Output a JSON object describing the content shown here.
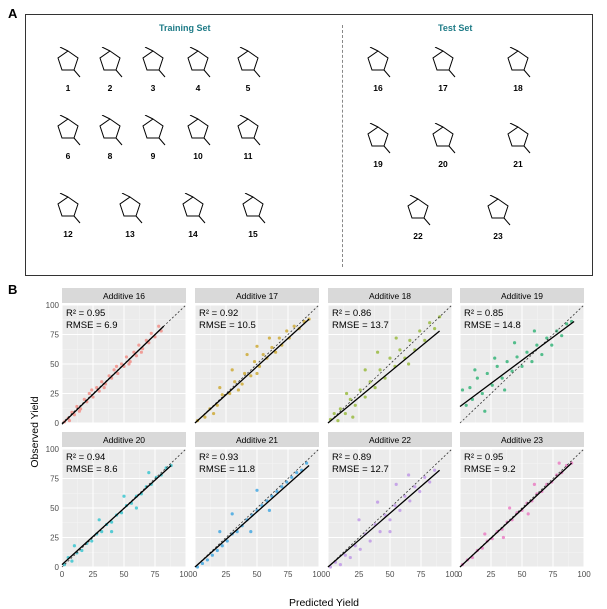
{
  "panel_a": {
    "letter": "A",
    "training_title": "Training Set",
    "test_title": "Test Set",
    "training_molecules": [
      "1",
      "2",
      "3",
      "4",
      "5",
      "6",
      "8",
      "9",
      "10",
      "11",
      "12",
      "13",
      "14",
      "15"
    ],
    "test_molecules": [
      "16",
      "17",
      "18",
      "19",
      "20",
      "21",
      "22",
      "23"
    ]
  },
  "panel_b": {
    "letter": "B"
  },
  "chart_data": {
    "type": "scatter",
    "xlabel": "Predicted Yield",
    "ylabel": "Observed Yield",
    "xlim": [
      0,
      100
    ],
    "ylim": [
      0,
      100
    ],
    "x_ticks": [
      0,
      25,
      50,
      75,
      100
    ],
    "y_ticks": [
      0,
      25,
      50,
      75,
      100
    ],
    "grid": true,
    "reference_line": "y = x (dashed)",
    "facets": [
      {
        "title": "Additive 16",
        "r2_label": "R² = 0.95",
        "rmse_label": "RMSE = 6.9",
        "color": "#f2837b",
        "points": [
          [
            2,
            1
          ],
          [
            5,
            4
          ],
          [
            8,
            9
          ],
          [
            10,
            7
          ],
          [
            12,
            14
          ],
          [
            15,
            12
          ],
          [
            18,
            20
          ],
          [
            20,
            18
          ],
          [
            22,
            25
          ],
          [
            25,
            22
          ],
          [
            28,
            30
          ],
          [
            30,
            27
          ],
          [
            32,
            35
          ],
          [
            35,
            33
          ],
          [
            38,
            40
          ],
          [
            40,
            38
          ],
          [
            42,
            45
          ],
          [
            45,
            42
          ],
          [
            48,
            50
          ],
          [
            50,
            48
          ],
          [
            52,
            56
          ],
          [
            55,
            52
          ],
          [
            58,
            60
          ],
          [
            60,
            57
          ],
          [
            62,
            66
          ],
          [
            65,
            63
          ],
          [
            68,
            70
          ],
          [
            70,
            68
          ],
          [
            72,
            76
          ],
          [
            75,
            73
          ],
          [
            78,
            82
          ],
          [
            80,
            78
          ],
          [
            6,
            2
          ],
          [
            14,
            10
          ],
          [
            24,
            28
          ],
          [
            34,
            30
          ],
          [
            44,
            48
          ],
          [
            54,
            50
          ],
          [
            64,
            60
          ]
        ],
        "fit": [
          [
            0,
            -1
          ],
          [
            82,
            82
          ]
        ]
      },
      {
        "title": "Additive 17",
        "r2_label": "R² = 0.92",
        "rmse_label": "RMSE = 10.5",
        "color": "#c9a21f",
        "points": [
          [
            2,
            2
          ],
          [
            8,
            5
          ],
          [
            12,
            12
          ],
          [
            18,
            15
          ],
          [
            22,
            24
          ],
          [
            28,
            25
          ],
          [
            32,
            35
          ],
          [
            38,
            33
          ],
          [
            40,
            42
          ],
          [
            45,
            40
          ],
          [
            48,
            52
          ],
          [
            52,
            48
          ],
          [
            55,
            58
          ],
          [
            58,
            55
          ],
          [
            62,
            64
          ],
          [
            65,
            60
          ],
          [
            68,
            72
          ],
          [
            70,
            66
          ],
          [
            74,
            78
          ],
          [
            76,
            72
          ],
          [
            80,
            82
          ],
          [
            84,
            80
          ],
          [
            88,
            86
          ],
          [
            92,
            88
          ],
          [
            30,
            45
          ],
          [
            42,
            58
          ],
          [
            50,
            65
          ],
          [
            60,
            72
          ],
          [
            35,
            28
          ],
          [
            50,
            42
          ],
          [
            20,
            30
          ],
          [
            15,
            8
          ]
        ],
        "fit": [
          [
            0,
            0
          ],
          [
            92,
            88
          ]
        ]
      },
      {
        "title": "Additive 18",
        "r2_label": "R² = 0.86",
        "rmse_label": "RMSE = 13.7",
        "color": "#8fb42a",
        "points": [
          [
            2,
            3
          ],
          [
            5,
            8
          ],
          [
            8,
            2
          ],
          [
            10,
            12
          ],
          [
            14,
            8
          ],
          [
            18,
            20
          ],
          [
            22,
            15
          ],
          [
            26,
            28
          ],
          [
            30,
            22
          ],
          [
            34,
            35
          ],
          [
            38,
            30
          ],
          [
            42,
            45
          ],
          [
            46,
            38
          ],
          [
            50,
            55
          ],
          [
            54,
            48
          ],
          [
            58,
            62
          ],
          [
            62,
            55
          ],
          [
            66,
            70
          ],
          [
            70,
            62
          ],
          [
            74,
            78
          ],
          [
            78,
            70
          ],
          [
            82,
            85
          ],
          [
            86,
            80
          ],
          [
            90,
            90
          ],
          [
            40,
            60
          ],
          [
            55,
            72
          ],
          [
            30,
            45
          ],
          [
            65,
            50
          ],
          [
            20,
            5
          ],
          [
            15,
            25
          ]
        ],
        "fit": [
          [
            0,
            0
          ],
          [
            90,
            78
          ]
        ]
      },
      {
        "title": "Additive 19",
        "r2_label": "R² = 0.85",
        "rmse_label": "RMSE = 14.8",
        "color": "#1fae6b",
        "points": [
          [
            2,
            28
          ],
          [
            5,
            15
          ],
          [
            8,
            30
          ],
          [
            10,
            20
          ],
          [
            14,
            38
          ],
          [
            18,
            25
          ],
          [
            22,
            42
          ],
          [
            26,
            32
          ],
          [
            30,
            48
          ],
          [
            34,
            38
          ],
          [
            38,
            52
          ],
          [
            42,
            44
          ],
          [
            46,
            56
          ],
          [
            50,
            48
          ],
          [
            54,
            60
          ],
          [
            58,
            52
          ],
          [
            62,
            66
          ],
          [
            66,
            58
          ],
          [
            70,
            72
          ],
          [
            74,
            66
          ],
          [
            78,
            78
          ],
          [
            82,
            74
          ],
          [
            86,
            84
          ],
          [
            90,
            86
          ],
          [
            12,
            45
          ],
          [
            28,
            55
          ],
          [
            44,
            68
          ],
          [
            60,
            78
          ],
          [
            20,
            10
          ],
          [
            36,
            28
          ]
        ],
        "fit": [
          [
            0,
            14
          ],
          [
            92,
            86
          ]
        ]
      },
      {
        "title": "Additive 20",
        "r2_label": "R² = 0.94",
        "rmse_label": "RMSE = 8.6",
        "color": "#23c0cc",
        "points": [
          [
            2,
            2
          ],
          [
            5,
            8
          ],
          [
            8,
            5
          ],
          [
            12,
            12
          ],
          [
            16,
            14
          ],
          [
            20,
            20
          ],
          [
            24,
            22
          ],
          [
            28,
            28
          ],
          [
            32,
            30
          ],
          [
            36,
            36
          ],
          [
            40,
            38
          ],
          [
            44,
            44
          ],
          [
            48,
            46
          ],
          [
            52,
            52
          ],
          [
            56,
            54
          ],
          [
            60,
            60
          ],
          [
            64,
            62
          ],
          [
            68,
            68
          ],
          [
            72,
            70
          ],
          [
            76,
            76
          ],
          [
            80,
            78
          ],
          [
            84,
            84
          ],
          [
            88,
            86
          ],
          [
            10,
            18
          ],
          [
            30,
            40
          ],
          [
            50,
            60
          ],
          [
            70,
            80
          ],
          [
            40,
            30
          ],
          [
            60,
            50
          ]
        ],
        "fit": [
          [
            0,
            2
          ],
          [
            88,
            86
          ]
        ]
      },
      {
        "title": "Additive 21",
        "r2_label": "R² = 0.93",
        "rmse_label": "RMSE = 11.8",
        "color": "#2d9fe0",
        "points": [
          [
            2,
            0
          ],
          [
            6,
            3
          ],
          [
            10,
            6
          ],
          [
            14,
            10
          ],
          [
            18,
            14
          ],
          [
            22,
            18
          ],
          [
            26,
            22
          ],
          [
            30,
            28
          ],
          [
            34,
            30
          ],
          [
            38,
            35
          ],
          [
            42,
            40
          ],
          [
            46,
            44
          ],
          [
            50,
            48
          ],
          [
            54,
            52
          ],
          [
            58,
            56
          ],
          [
            62,
            60
          ],
          [
            66,
            64
          ],
          [
            70,
            68
          ],
          [
            74,
            72
          ],
          [
            78,
            76
          ],
          [
            82,
            80
          ],
          [
            86,
            82
          ],
          [
            90,
            88
          ],
          [
            30,
            45
          ],
          [
            50,
            65
          ],
          [
            20,
            30
          ],
          [
            60,
            48
          ],
          [
            45,
            30
          ]
        ],
        "fit": [
          [
            0,
            0
          ],
          [
            92,
            86
          ]
        ]
      },
      {
        "title": "Additive 22",
        "r2_label": "R² = 0.89",
        "rmse_label": "RMSE = 12.7",
        "color": "#b98de6",
        "points": [
          [
            2,
            0
          ],
          [
            6,
            4
          ],
          [
            10,
            2
          ],
          [
            14,
            10
          ],
          [
            18,
            8
          ],
          [
            22,
            18
          ],
          [
            26,
            15
          ],
          [
            30,
            28
          ],
          [
            34,
            22
          ],
          [
            38,
            36
          ],
          [
            42,
            30
          ],
          [
            46,
            44
          ],
          [
            50,
            40
          ],
          [
            54,
            52
          ],
          [
            58,
            48
          ],
          [
            62,
            60
          ],
          [
            66,
            56
          ],
          [
            70,
            68
          ],
          [
            74,
            64
          ],
          [
            78,
            76
          ],
          [
            82,
            72
          ],
          [
            86,
            82
          ],
          [
            40,
            55
          ],
          [
            55,
            70
          ],
          [
            65,
            78
          ],
          [
            25,
            40
          ],
          [
            50,
            30
          ]
        ],
        "fit": [
          [
            0,
            0
          ],
          [
            90,
            82
          ]
        ]
      },
      {
        "title": "Additive 23",
        "r2_label": "R² = 0.95",
        "rmse_label": "RMSE = 9.2",
        "color": "#ea6fbd",
        "points": [
          [
            2,
            2
          ],
          [
            6,
            6
          ],
          [
            10,
            8
          ],
          [
            14,
            14
          ],
          [
            18,
            16
          ],
          [
            22,
            22
          ],
          [
            26,
            24
          ],
          [
            30,
            30
          ],
          [
            34,
            32
          ],
          [
            38,
            38
          ],
          [
            42,
            40
          ],
          [
            46,
            46
          ],
          [
            50,
            48
          ],
          [
            54,
            54
          ],
          [
            58,
            56
          ],
          [
            62,
            62
          ],
          [
            66,
            64
          ],
          [
            70,
            70
          ],
          [
            74,
            72
          ],
          [
            78,
            78
          ],
          [
            82,
            80
          ],
          [
            86,
            86
          ],
          [
            90,
            88
          ],
          [
            20,
            28
          ],
          [
            40,
            50
          ],
          [
            60,
            70
          ],
          [
            80,
            88
          ],
          [
            35,
            25
          ],
          [
            55,
            45
          ]
        ],
        "fit": [
          [
            0,
            0
          ],
          [
            90,
            88
          ]
        ]
      }
    ]
  }
}
